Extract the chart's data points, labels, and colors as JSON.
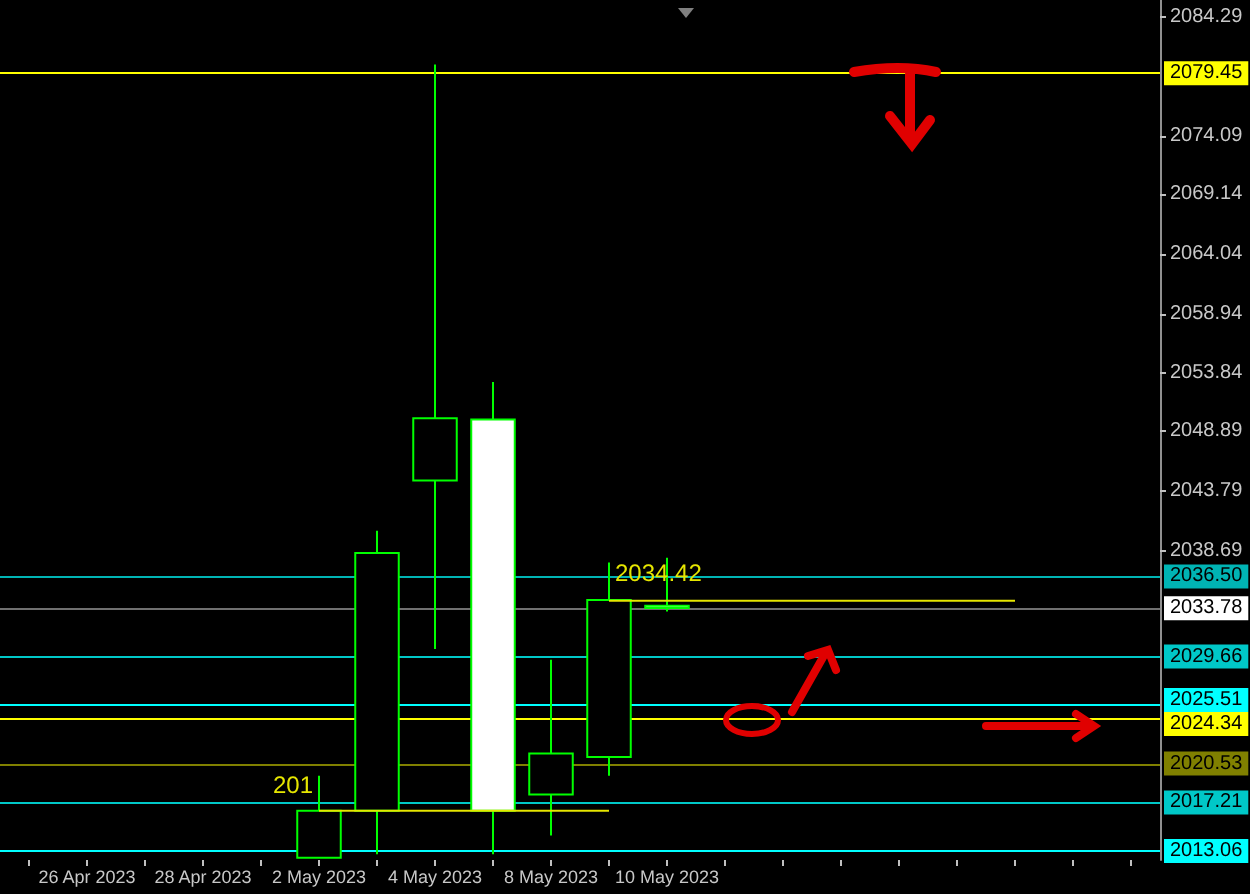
{
  "chart_data": {
    "type": "candlestick",
    "categories": [
      null,
      "26 Apr 2023",
      null,
      "28 Apr 2023",
      null,
      "2 May 2023",
      null,
      "4 May 2023",
      null,
      "8 May 2023",
      null,
      "10 May 2023",
      null,
      null,
      null,
      null,
      null,
      null,
      null,
      null
    ],
    "ohlc": [
      null,
      null,
      null,
      null,
      null,
      [
        2012.5,
        2019.5,
        2012.5,
        2016.5
      ],
      [
        2016.5,
        2040.4,
        2012.8,
        2038.5
      ],
      [
        2044.7,
        2080.2,
        2030.3,
        2050.0
      ],
      [
        2049.9,
        2053.1,
        2012.8,
        2016.5
      ],
      [
        2017.9,
        2029.4,
        2014.4,
        2021.4
      ],
      [
        2021.1,
        2037.7,
        2019.5,
        2034.5
      ],
      [
        2034.0,
        2038.1,
        2033.5,
        2033.8
      ],
      null,
      null,
      null,
      null,
      null,
      null,
      null,
      null
    ],
    "color": "#00ff00",
    "series": [
      {
        "type": "line",
        "color": "#e6e600",
        "values": [
          null,
          null,
          null,
          null,
          null,
          null,
          null,
          null,
          null,
          null,
          2034.42,
          2034.42,
          2034.42,
          2034.42,
          2034.42,
          2034.42,
          2034.42,
          2034.42,
          null,
          null
        ],
        "value_labels": [
          null,
          null,
          null,
          null,
          null,
          null,
          null,
          null,
          null,
          null,
          "2034.42",
          null,
          null,
          null,
          null,
          null,
          null,
          null,
          null,
          null
        ]
      },
      {
        "type": "line",
        "color": "#e6e600",
        "values": [
          null,
          null,
          null,
          null,
          null,
          2016.5,
          2016.5,
          2016.5,
          2016.5,
          2016.5,
          2016.5,
          null,
          null,
          null,
          null,
          null,
          null,
          null,
          null,
          null
        ]
      }
    ],
    "annotations": [
      {
        "text": "201",
        "x": "2 May 2023",
        "y": 2016.5
      }
    ],
    "ylim": [
      2012.3,
      2085.7
    ],
    "yticks": [
      2038.69,
      2043.79,
      2048.89,
      2053.84,
      2058.94,
      2064.04,
      2069.14,
      2074.09,
      2084.29
    ],
    "ref_lines": [
      {
        "axis": "y",
        "value": 2079.45,
        "label": "2079.45",
        "color": "#ffff00"
      },
      {
        "axis": "y",
        "value": 2036.5,
        "label": "2036.50",
        "color": "#00b4b4"
      },
      {
        "axis": "y",
        "value": 2033.78,
        "label": "2033.78",
        "color": "#707070"
      },
      {
        "axis": "y",
        "value": 2029.66,
        "label": "2029.66",
        "color": "#00c8c8"
      },
      {
        "axis": "y",
        "value": 2025.51,
        "label": "2025.51",
        "color": "#00ffff"
      },
      {
        "axis": "y",
        "value": 2024.34,
        "label": "2024.34",
        "color": "#ffff00"
      },
      {
        "axis": "y",
        "value": 2020.53,
        "label": "2020.53",
        "color": "#808000"
      },
      {
        "axis": "y",
        "value": 2017.21,
        "label": "2017.21",
        "color": "#00c8c8"
      },
      {
        "axis": "y",
        "value": 2013.06,
        "label": "2013.06",
        "color": "#00ffff"
      }
    ],
    "grid": false,
    "marker": "none"
  }
}
